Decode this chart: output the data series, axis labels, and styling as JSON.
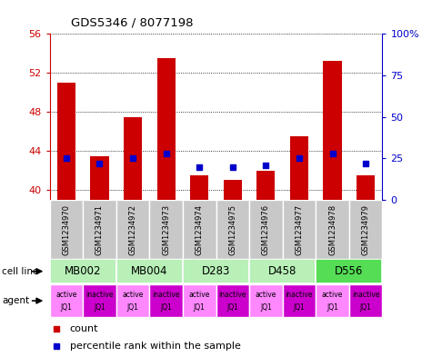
{
  "title": "GDS5346 / 8077198",
  "samples": [
    "GSM1234970",
    "GSM1234971",
    "GSM1234972",
    "GSM1234973",
    "GSM1234974",
    "GSM1234975",
    "GSM1234976",
    "GSM1234977",
    "GSM1234978",
    "GSM1234979"
  ],
  "counts": [
    51.0,
    43.5,
    47.5,
    53.5,
    41.5,
    41.1,
    42.0,
    45.5,
    53.2,
    41.5
  ],
  "percentiles": [
    25,
    22,
    25,
    28,
    20,
    20,
    21,
    25,
    28,
    22
  ],
  "ylim_left": [
    39,
    56
  ],
  "ylim_right": [
    0,
    100
  ],
  "left_ticks": [
    40,
    44,
    48,
    52,
    56
  ],
  "right_ticks": [
    0,
    25,
    50,
    75,
    100
  ],
  "right_tick_labels": [
    "0",
    "25",
    "50",
    "75",
    "100%"
  ],
  "cell_line_labels": [
    "MB002",
    "MB004",
    "D283",
    "D458",
    "D556"
  ],
  "cell_line_colors": [
    "#b8f0b8",
    "#b8f0b8",
    "#b8f0b8",
    "#b8f0b8",
    "#55dd55"
  ],
  "cell_line_spans": [
    [
      0,
      2
    ],
    [
      2,
      4
    ],
    [
      4,
      6
    ],
    [
      6,
      8
    ],
    [
      8,
      10
    ]
  ],
  "agent_labels_top": [
    "active",
    "inactive",
    "active",
    "inactive",
    "active",
    "inactive",
    "active",
    "inactive",
    "active",
    "inactive"
  ],
  "agent_labels_bot": [
    "JQ1",
    "JQ1",
    "JQ1",
    "JQ1",
    "JQ1",
    "JQ1",
    "JQ1",
    "JQ1",
    "JQ1",
    "JQ1"
  ],
  "agent_color_active": "#ff88ff",
  "agent_color_inactive": "#cc00cc",
  "bar_color": "#cc0000",
  "dot_color": "#0000cc",
  "grid_color": "#000000",
  "background_color": "#ffffff",
  "label_color_left": "#cc0000",
  "label_color_right": "#0000cc",
  "sample_box_color": "#c8c8c8",
  "bar_width": 0.55
}
